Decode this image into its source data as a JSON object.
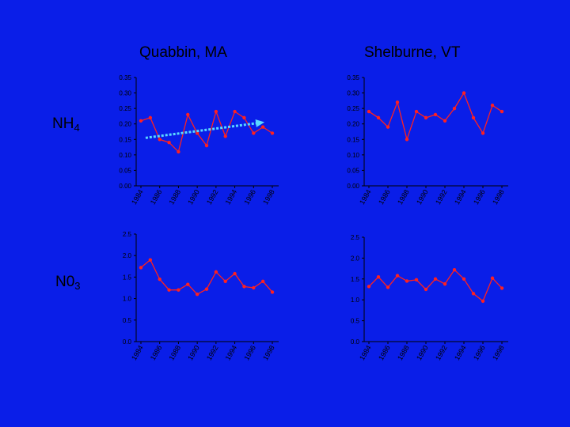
{
  "titles": {
    "left": "Quabbin, MA",
    "right": "Shelburne, VT"
  },
  "row_labels": {
    "nh4": {
      "base": "NH",
      "sub": "4"
    },
    "no3": {
      "base": "N0",
      "sub": "3"
    }
  },
  "colors": {
    "background": "#0a1ee8",
    "series": "#ff2020",
    "trend": "#5ad8ff",
    "axis": "#000000"
  },
  "chart_data": [
    {
      "id": "quabbin-nh4",
      "type": "line",
      "years": [
        1984,
        1985,
        1986,
        1987,
        1988,
        1989,
        1990,
        1991,
        1992,
        1993,
        1994,
        1995,
        1996,
        1997,
        1998
      ],
      "x_tick_labels": [
        "1984",
        "1986",
        "1988",
        "1990",
        "1992",
        "1994",
        "1996",
        "1998"
      ],
      "values": [
        0.21,
        0.22,
        0.15,
        0.14,
        0.11,
        0.23,
        0.17,
        0.13,
        0.24,
        0.16,
        0.24,
        0.22,
        0.17,
        0.19,
        0.17
      ],
      "ylim": [
        0,
        0.35
      ],
      "y_tick_labels": [
        "0.00",
        "0.05",
        "0.10",
        "0.15",
        "0.20",
        "0.25",
        "0.30",
        "0.35"
      ],
      "trend": {
        "from": [
          1984.5,
          0.155
        ],
        "to": [
          1997,
          0.205
        ]
      }
    },
    {
      "id": "shelburne-nh4",
      "type": "line",
      "years": [
        1984,
        1985,
        1986,
        1987,
        1988,
        1989,
        1990,
        1991,
        1992,
        1993,
        1994,
        1995,
        1996,
        1997,
        1998
      ],
      "x_tick_labels": [
        "1984",
        "1986",
        "1988",
        "1990",
        "1992",
        "1994",
        "1996",
        "1998"
      ],
      "values": [
        0.24,
        0.22,
        0.19,
        0.27,
        0.15,
        0.24,
        0.22,
        0.23,
        0.21,
        0.25,
        0.3,
        0.22,
        0.17,
        0.26,
        0.24
      ],
      "ylim": [
        0,
        0.35
      ],
      "y_tick_labels": [
        "0.00",
        "0.05",
        "0.10",
        "0.15",
        "0.20",
        "0.25",
        "0.30",
        "0.35"
      ]
    },
    {
      "id": "quabbin-no3",
      "type": "line",
      "years": [
        1984,
        1985,
        1986,
        1987,
        1988,
        1989,
        1990,
        1991,
        1992,
        1993,
        1994,
        1995,
        1996,
        1997,
        1998
      ],
      "x_tick_labels": [
        "1984",
        "1986",
        "1988",
        "1990",
        "1992",
        "1994",
        "1996",
        "1998"
      ],
      "values": [
        1.72,
        1.9,
        1.45,
        1.2,
        1.2,
        1.33,
        1.1,
        1.22,
        1.62,
        1.4,
        1.58,
        1.28,
        1.25,
        1.4,
        1.15
      ],
      "ylim": [
        0,
        2.5
      ],
      "y_tick_labels": [
        "0.0",
        "0.5",
        "1.0",
        "1.5",
        "2.0",
        "2.5"
      ]
    },
    {
      "id": "shelburne-no3",
      "type": "line",
      "years": [
        1984,
        1985,
        1986,
        1987,
        1988,
        1989,
        1990,
        1991,
        1992,
        1993,
        1994,
        1995,
        1996,
        1997,
        1998
      ],
      "x_tick_labels": [
        "1984",
        "1986",
        "1988",
        "1990",
        "1992",
        "1994",
        "1996",
        "1998"
      ],
      "values": [
        1.32,
        1.55,
        1.3,
        1.58,
        1.45,
        1.48,
        1.25,
        1.5,
        1.38,
        1.72,
        1.5,
        1.15,
        0.97,
        1.52,
        1.28
      ],
      "ylim": [
        0,
        2.5
      ],
      "y_tick_labels": [
        "0.0",
        "0.5",
        "1.0",
        "1.5",
        "2.0",
        "2.5"
      ]
    }
  ]
}
